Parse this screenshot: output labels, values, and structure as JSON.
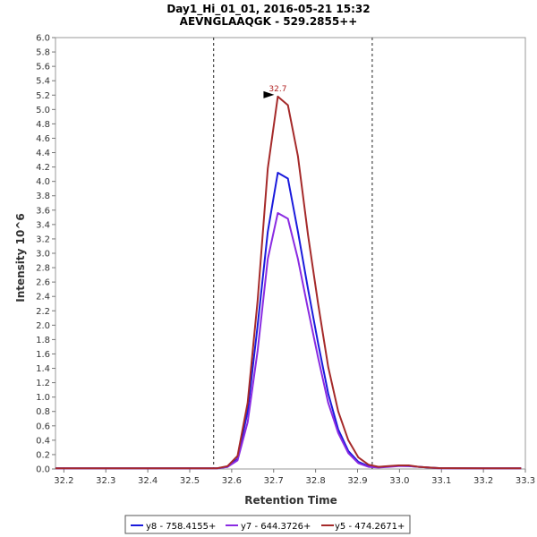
{
  "chart_data": {
    "type": "line",
    "title": "Day1_Hi_01_01, 2016-05-21 15:32",
    "subtitle": "AEVNGLAAQGK - 529.2855++",
    "xlabel": "Retention Time",
    "ylabel": "Intensity 10^6",
    "xlim": [
      32.18,
      33.3
    ],
    "ylim": [
      0,
      6.0
    ],
    "xticks": [
      "32.2",
      "32.3",
      "32.4",
      "32.5",
      "32.6",
      "32.7",
      "32.8",
      "32.9",
      "33.0",
      "33.1",
      "33.2",
      "33.3"
    ],
    "yticks": [
      "0.0",
      "0.2",
      "0.4",
      "0.6",
      "0.8",
      "1.0",
      "1.2",
      "1.4",
      "1.6",
      "1.8",
      "2.0",
      "2.2",
      "2.4",
      "2.6",
      "2.8",
      "3.0",
      "3.2",
      "3.4",
      "3.6",
      "3.8",
      "4.0",
      "4.2",
      "4.4",
      "4.6",
      "4.8",
      "5.0",
      "5.2",
      "5.4",
      "5.6",
      "5.8",
      "6.0"
    ],
    "boundaries": [
      32.557,
      32.935
    ],
    "x": [
      32.18,
      32.3,
      32.4,
      32.5,
      32.54,
      32.565,
      32.59,
      32.614,
      32.638,
      32.662,
      32.686,
      32.71,
      32.734,
      32.758,
      32.782,
      32.806,
      32.83,
      32.854,
      32.878,
      32.902,
      32.926,
      32.95,
      32.974,
      32.998,
      33.022,
      33.046,
      33.07,
      33.094,
      33.2,
      33.29
    ],
    "series": [
      {
        "name": "y8 - 758.4155+",
        "color": "#1a1adc",
        "values": [
          0.01,
          0.01,
          0.01,
          0.01,
          0.01,
          0.01,
          0.03,
          0.14,
          0.8,
          2.0,
          3.3,
          4.12,
          4.04,
          3.3,
          2.5,
          1.75,
          1.05,
          0.55,
          0.25,
          0.1,
          0.04,
          0.03,
          0.035,
          0.045,
          0.04,
          0.03,
          0.02,
          0.012,
          0.01,
          0.01
        ]
      },
      {
        "name": "y7 - 644.3726+",
        "color": "#8a2be2",
        "values": [
          0.01,
          0.01,
          0.01,
          0.01,
          0.01,
          0.01,
          0.03,
          0.12,
          0.65,
          1.65,
          2.92,
          3.56,
          3.48,
          2.92,
          2.22,
          1.55,
          0.92,
          0.5,
          0.22,
          0.08,
          0.03,
          0.02,
          0.03,
          0.04,
          0.04,
          0.03,
          0.02,
          0.01,
          0.01,
          0.01
        ]
      },
      {
        "name": "y5 - 474.2671+",
        "color": "#a52a2a",
        "values": [
          0.01,
          0.01,
          0.01,
          0.01,
          0.01,
          0.01,
          0.04,
          0.18,
          0.92,
          2.35,
          4.18,
          5.18,
          5.06,
          4.35,
          3.25,
          2.3,
          1.42,
          0.8,
          0.4,
          0.16,
          0.06,
          0.03,
          0.04,
          0.05,
          0.05,
          0.03,
          0.02,
          0.012,
          0.01,
          0.01
        ]
      }
    ],
    "peak_annotation": {
      "label": "32.7",
      "x": 32.71,
      "y": 5.18
    },
    "legend_position": "bottom-center"
  }
}
